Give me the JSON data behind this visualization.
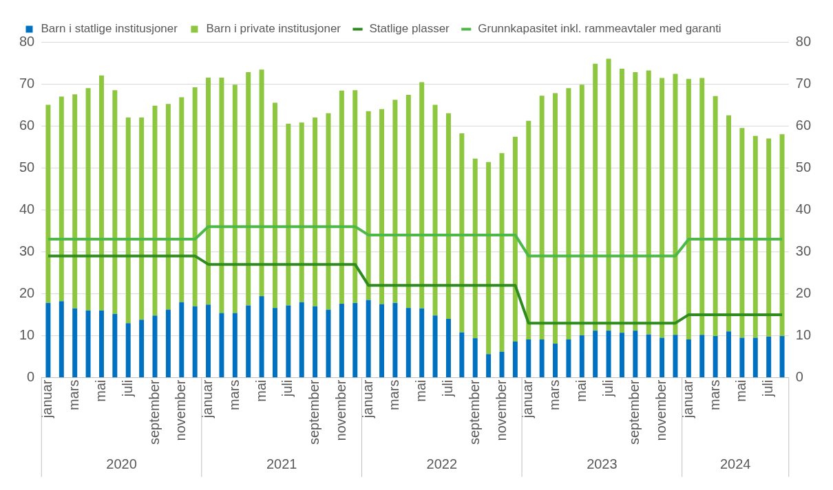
{
  "chart_data": {
    "type": "bar",
    "stacked": true,
    "legend": "top",
    "grid": "y",
    "marker": "none",
    "categories": [
      "januar",
      null,
      "mars",
      null,
      "mai",
      null,
      "juli",
      null,
      "september",
      null,
      "november",
      null,
      "januar",
      null,
      "mars",
      null,
      "mai",
      null,
      "juli",
      null,
      "september",
      null,
      "november",
      null,
      "januar",
      null,
      "mars",
      null,
      "mai",
      null,
      "juli",
      null,
      "september",
      null,
      "november",
      null,
      "januar",
      null,
      "mars",
      null,
      "mai",
      null,
      "juli",
      null,
      "september",
      null,
      "november",
      null,
      "januar",
      null,
      "mars",
      null,
      "mai",
      null,
      "juli",
      null
    ],
    "series": [
      {
        "name": "Barn i statlige institusjoner",
        "color": "#0070c0",
        "values": [
          17.8,
          18.2,
          16.5,
          16,
          16,
          15.2,
          13,
          13.8,
          14.8,
          16.2,
          18,
          17,
          17.4,
          15.4,
          15.4,
          17.2,
          19.4,
          16.6,
          17.2,
          18,
          17,
          16.2,
          17.6,
          17.8,
          18.5,
          17.5,
          17.8,
          16.6,
          16.5,
          14.8,
          14,
          10.8,
          9.4,
          5.6,
          6.2,
          8.6,
          9.1,
          9.1,
          8.1,
          9.1,
          10.1,
          11.2,
          11.2,
          10.7,
          11.2,
          10.3,
          9.5,
          10.2,
          9.1,
          10.2,
          9.9,
          11,
          9.5,
          9.5,
          9.8,
          9.9
        ]
      },
      {
        "name": "Barn i private institusjoner",
        "color": "#8dc63f",
        "values": [
          47.2,
          48.8,
          51,
          53,
          56,
          53.3,
          49,
          48.2,
          50,
          49,
          48.8,
          52.2,
          54.1,
          56.1,
          54.4,
          55.6,
          54,
          48.9,
          43.3,
          42.8,
          45,
          46.8,
          50.8,
          50.7,
          45,
          46.5,
          48.4,
          50.8,
          53.9,
          50.2,
          49,
          47.4,
          42.8,
          45.8,
          47.3,
          48.8,
          52.1,
          58.1,
          59.7,
          59.9,
          59.7,
          63.6,
          64.8,
          62.9,
          61.6,
          62.9,
          61.9,
          62.2,
          62.1,
          61.2,
          57.2,
          51.5,
          50,
          48.1,
          47.2,
          48.1
        ]
      },
      {
        "name": "Statlige plasser",
        "type": "line",
        "color": "#2e8b1e",
        "values": [
          29,
          29,
          29,
          29,
          29,
          29,
          29,
          29,
          29,
          29,
          29,
          29,
          27,
          27,
          27,
          27,
          27,
          27,
          27,
          27,
          27,
          27,
          27,
          27,
          22,
          22,
          22,
          22,
          22,
          22,
          22,
          22,
          22,
          22,
          22,
          22,
          13,
          13,
          13,
          13,
          13,
          13,
          13,
          13,
          13,
          13,
          13,
          13,
          15,
          15,
          15,
          15,
          15,
          15,
          15,
          15
        ]
      },
      {
        "name": "Grunnkapasitet inkl. rammeavtaler med garanti",
        "type": "line",
        "color": "#4cb848",
        "values": [
          33,
          33,
          33,
          33,
          33,
          33,
          33,
          33,
          33,
          33,
          33,
          33,
          36,
          36,
          36,
          36,
          36,
          36,
          36,
          36,
          36,
          36,
          36,
          36,
          34,
          34,
          34,
          34,
          34,
          34,
          34,
          34,
          34,
          34,
          34,
          34,
          29,
          29,
          29,
          29,
          29,
          29,
          29,
          29,
          29,
          29,
          29,
          29,
          33,
          33,
          33,
          33,
          33,
          33,
          33,
          33
        ]
      }
    ],
    "ylim": [
      0,
      80
    ],
    "yticks": [
      0,
      10,
      20,
      30,
      40,
      50,
      60,
      70,
      80
    ],
    "y2lim": [
      0,
      80
    ],
    "y2ticks": [
      0,
      10,
      20,
      30,
      40,
      50,
      60,
      70,
      80
    ],
    "annotations": [
      "2020",
      "2021",
      "2022",
      "2023",
      "2024"
    ]
  }
}
